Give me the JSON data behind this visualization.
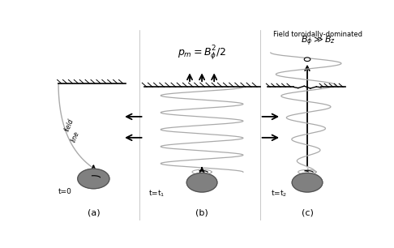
{
  "figsize": [
    4.86,
    3.06
  ],
  "dpi": 100,
  "bg_color": "#ffffff",
  "panels": [
    "(a)",
    "(b)",
    "(c)"
  ],
  "bh_color": "#808080",
  "bh_edge_color": "#505050",
  "label_a_time": "t=0",
  "label_b_time": "t=t$_1$",
  "label_c_time": "t=t$_2$",
  "title_b": "$p_m = B_\\phi^2/2$",
  "title_c_line1": "Field toroidally-dominated",
  "title_c_line2": "$B_\\phi \\gg B_z$"
}
